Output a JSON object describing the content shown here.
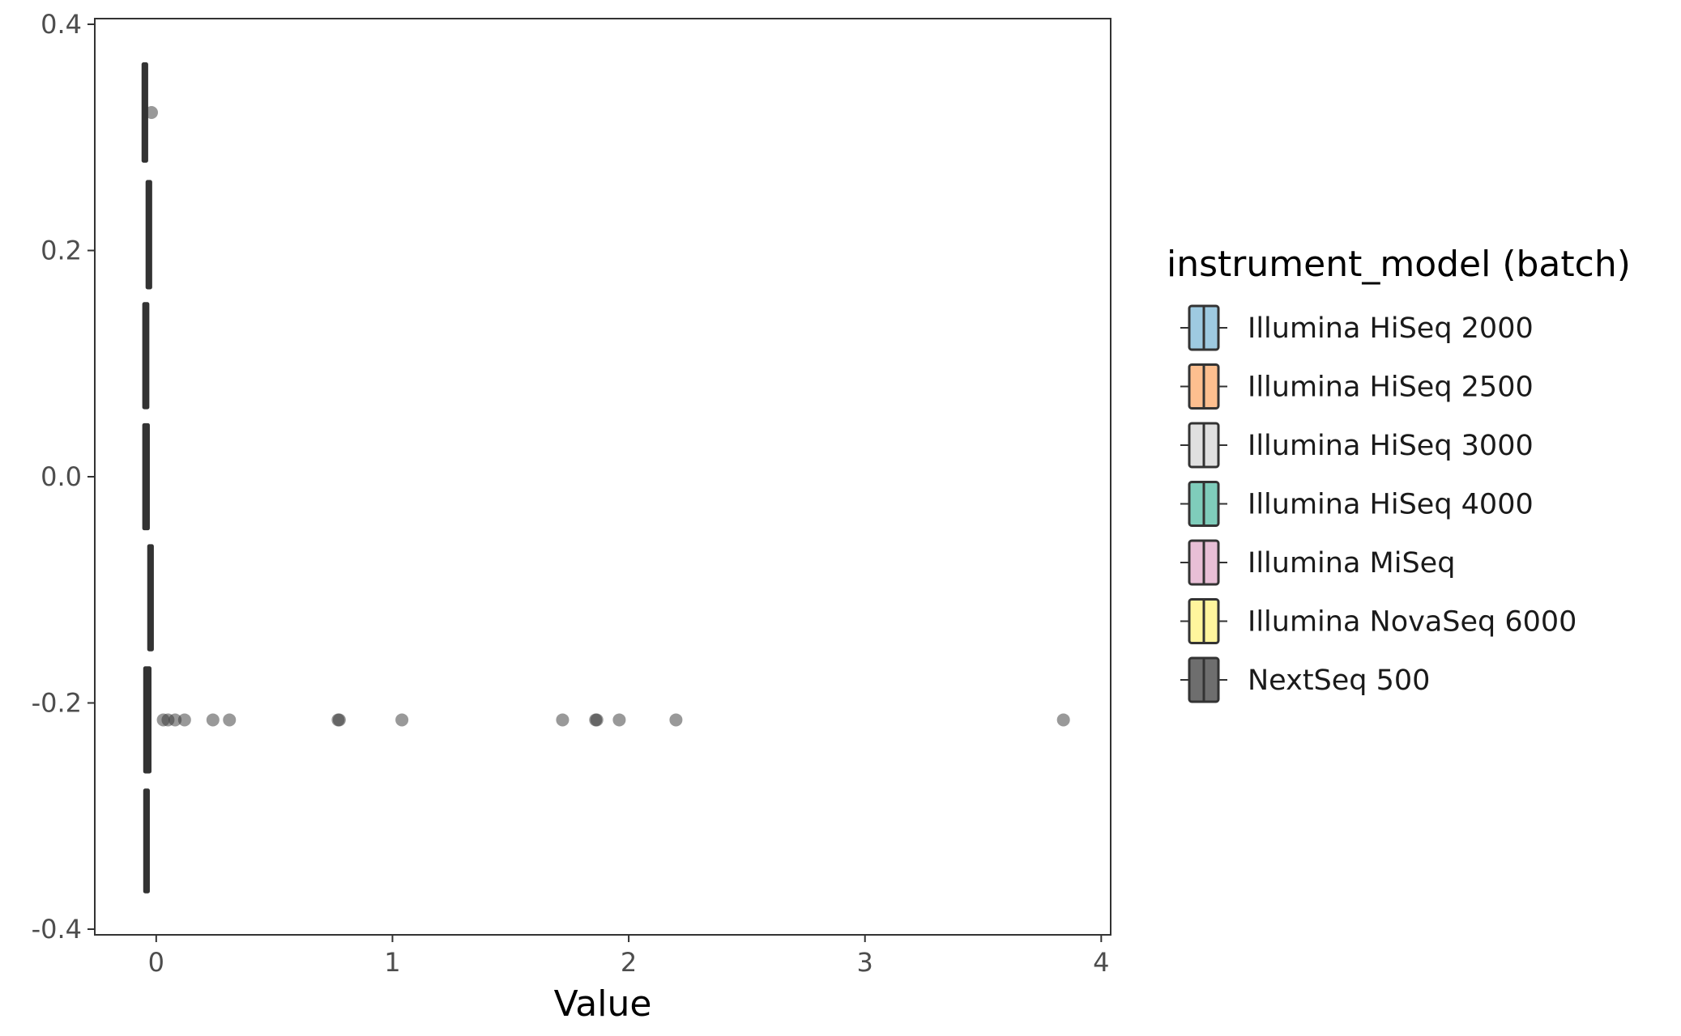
{
  "chart_data": {
    "type": "boxplot",
    "xlabel": "Value",
    "ylabel": "",
    "xlim": [
      -0.26,
      4.04
    ],
    "ylim": [
      -0.405,
      0.405
    ],
    "x_ticks": [
      0,
      1,
      2,
      3,
      4
    ],
    "x_tick_labels": [
      "0",
      "1",
      "2",
      "3",
      "4"
    ],
    "y_ticks": [
      0.4,
      0.2,
      0.0,
      -0.2,
      -0.4
    ],
    "y_tick_labels": [
      "0.4",
      "0.2",
      "0.0",
      "-0.2",
      "-0.4"
    ],
    "grid": false,
    "legend": {
      "title": "instrument_model (batch)",
      "position": "right",
      "entries": [
        {
          "label": "Illumina HiSeq 2000",
          "color": "#9ecae1"
        },
        {
          "label": "Illumina HiSeq 2500",
          "color": "#fdbf8f"
        },
        {
          "label": "Illumina HiSeq 3000",
          "color": "#e0e0e0"
        },
        {
          "label": "Illumina HiSeq 4000",
          "color": "#7fcdbb"
        },
        {
          "label": "Illumina MiSeq",
          "color": "#e8bfd6"
        },
        {
          "label": "Illumina NovaSeq 6000",
          "color": "#fff59d"
        },
        {
          "label": "NextSeq 500",
          "color": "#6e6e6e"
        }
      ]
    },
    "series": [
      {
        "y_center": 0.322,
        "y_min": 0.278,
        "y_max": 0.366,
        "x_min": -0.052,
        "x_q1": -0.05,
        "x_median": -0.048,
        "x_q3": -0.046,
        "x_max": -0.044,
        "outliers": [
          -0.02
        ]
      },
      {
        "y_center": 0.215,
        "y_min": 0.166,
        "y_max": 0.262,
        "x_min": -0.036,
        "x_q1": -0.033,
        "x_median": -0.031,
        "x_q3": -0.029,
        "x_max": -0.026,
        "outliers": []
      },
      {
        "y_center": 0.107,
        "y_min": 0.06,
        "y_max": 0.154,
        "x_min": -0.052,
        "x_q1": -0.047,
        "x_median": -0.044,
        "x_q3": -0.041,
        "x_max": -0.038,
        "outliers": []
      },
      {
        "y_center": 0.0,
        "y_min": -0.047,
        "y_max": 0.047,
        "x_min": -0.052,
        "x_q1": -0.047,
        "x_median": -0.043,
        "x_q3": -0.039,
        "x_max": -0.034,
        "outliers": []
      },
      {
        "y_center": -0.107,
        "y_min": -0.154,
        "y_max": -0.06,
        "x_min": -0.028,
        "x_q1": -0.026,
        "x_median": -0.024,
        "x_q3": -0.022,
        "x_max": -0.02,
        "outliers": []
      },
      {
        "y_center": -0.215,
        "y_min": -0.262,
        "y_max": -0.168,
        "x_min": -0.05,
        "x_q1": -0.043,
        "x_median": -0.038,
        "x_q3": -0.032,
        "x_max": -0.026,
        "outliers": [
          0.03,
          0.05,
          0.08,
          0.12,
          0.24,
          0.31,
          0.77,
          0.775,
          1.04,
          1.72,
          1.86,
          1.865,
          1.96,
          2.2,
          3.84
        ]
      },
      {
        "y_center": -0.322,
        "y_min": -0.368,
        "y_max": -0.276,
        "x_min": -0.046,
        "x_q1": -0.043,
        "x_median": -0.041,
        "x_q3": -0.039,
        "x_max": -0.037,
        "outliers": []
      }
    ]
  }
}
